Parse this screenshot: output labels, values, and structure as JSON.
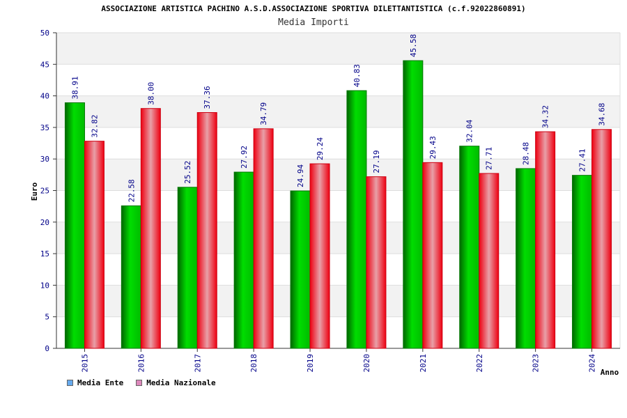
{
  "chart_data": {
    "type": "bar",
    "title": "ASSOCIAZIONE ARTISTICA PACHINO A.S.D.ASSOCIAZIONE SPORTIVA DILETTANTISTICA (c.f.92022860891)",
    "subtitle": "Media Importi",
    "xlabel": "Anno",
    "ylabel": "Euro",
    "ylim": [
      0,
      50
    ],
    "yticks": [
      0,
      5,
      10,
      15,
      20,
      25,
      30,
      35,
      40,
      45,
      50
    ],
    "categories": [
      "2015",
      "2016",
      "2017",
      "2018",
      "2019",
      "2020",
      "2021",
      "2022",
      "2023",
      "2024"
    ],
    "series": [
      {
        "name": "Media Ente",
        "color": "#00cc00",
        "legend_color": "#66aaee",
        "values": [
          38.91,
          22.58,
          25.52,
          27.92,
          24.94,
          40.83,
          45.58,
          32.04,
          28.48,
          27.41
        ],
        "labels": [
          "38.91",
          "22.58",
          "25.52",
          "27.92",
          "24.94",
          "40.83",
          "45.58",
          "32.04",
          "28.48",
          "27.41"
        ]
      },
      {
        "name": "Media Nazionale",
        "color": "#ee1122",
        "legend_color": "#dd88bb",
        "values": [
          32.82,
          38.0,
          37.36,
          34.79,
          29.24,
          27.19,
          29.43,
          27.71,
          34.32,
          34.68
        ],
        "labels": [
          "32.82",
          "38.00",
          "37.36",
          "34.79",
          "29.24",
          "27.19",
          "29.43",
          "27.71",
          "34.32",
          "34.68"
        ]
      }
    ],
    "grid": true,
    "legend": "bottom-left"
  }
}
